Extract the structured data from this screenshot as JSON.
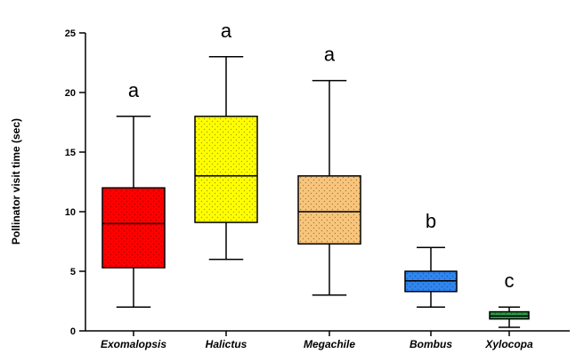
{
  "chart_data": {
    "type": "box",
    "title": "",
    "xlabel": "",
    "ylabel": "Pollinator visit time (sec)",
    "ylim": [
      0,
      25
    ],
    "yticks": [
      0,
      5,
      10,
      15,
      20,
      25
    ],
    "grid": false,
    "legend": "none",
    "categories": [
      "Exomalopsis",
      "Halictus",
      "Megachile",
      "Bombus",
      "Xylocopa"
    ],
    "boxes": [
      {
        "category": "Exomalopsis",
        "min": 2,
        "q1": 5.3,
        "median": 9,
        "q3": 12,
        "max": 18,
        "letter": "a",
        "color": "#ff0000"
      },
      {
        "category": "Halictus",
        "min": 6,
        "q1": 9.1,
        "median": 13,
        "q3": 18,
        "max": 23,
        "letter": "a",
        "color": "#ffff00"
      },
      {
        "category": "Megachile",
        "min": 3,
        "q1": 7.3,
        "median": 10,
        "q3": 13,
        "max": 21,
        "letter": "a",
        "color": "#f9c57a"
      },
      {
        "category": "Bombus",
        "min": 2,
        "q1": 3.3,
        "median": 4.2,
        "q3": 5,
        "max": 7,
        "letter": "b",
        "color": "#2f86f2"
      },
      {
        "category": "Xylocopa",
        "min": 0.3,
        "q1": 1,
        "median": 1.25,
        "q3": 1.6,
        "max": 2,
        "letter": "c",
        "color": "#2c9a49"
      }
    ]
  }
}
